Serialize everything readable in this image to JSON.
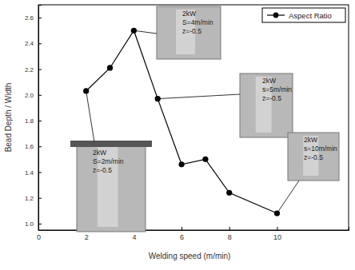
{
  "chart_data": {
    "type": "line",
    "x_label": "Welding speed (m/min)",
    "y_label": "Bead Depth / Width",
    "x": [
      2,
      3,
      4,
      5,
      6,
      7,
      8,
      10
    ],
    "series": [
      {
        "name": "Aspect Ratio",
        "color": "#000000",
        "marker": "circle",
        "line_style": "solid",
        "values": [
          2.03,
          2.21,
          2.5,
          1.97,
          1.46,
          1.5,
          1.24,
          1.08
        ]
      }
    ],
    "xlim": [
      0,
      13
    ],
    "xticks": [
      0,
      2,
      4,
      6,
      8,
      10
    ],
    "ylim": [
      0.95,
      2.7
    ],
    "yticks": [
      {
        "value": 1.0,
        "label": "1.0"
      },
      1.2,
      1.4,
      1.6,
      1.8,
      {
        "value": 2.0,
        "label": "2.0"
      },
      2.2,
      2.4,
      2.6
    ],
    "legend": "top-right",
    "grid": false,
    "annotations": [
      {
        "lines": [
          "2kW",
          "S=2m/min",
          "z=-0.5"
        ]
      },
      {
        "lines": [
          "2kW",
          "S=4m/min",
          "z=-0.5"
        ]
      },
      {
        "lines": [
          "2kW",
          "s=5m/min",
          "z=-0.5"
        ]
      },
      {
        "lines": [
          "2kW",
          "s=10m/min",
          "z=-0.5"
        ]
      }
    ]
  }
}
